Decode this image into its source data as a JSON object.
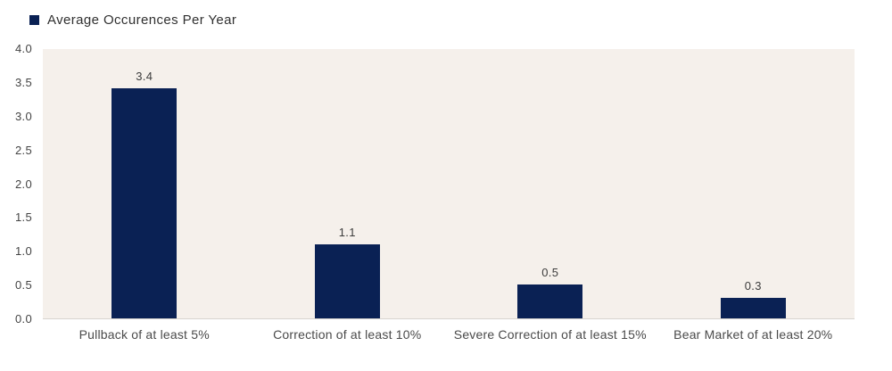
{
  "chart_data": {
    "type": "bar",
    "title": "",
    "legend": "Average Occurences Per Year",
    "legend_position": "top-left",
    "categories": [
      "Pullback of at least 5%",
      "Correction of at least 10%",
      "Severe Correction of at least 15%",
      "Bear Market of at least 20%"
    ],
    "values": [
      3.4,
      1.1,
      0.5,
      0.3
    ],
    "value_labels": [
      "3.4",
      "1.1",
      "0.5",
      "0.3"
    ],
    "ytick_labels": [
      "0.0",
      "0.5",
      "1.0",
      "1.5",
      "2.0",
      "2.5",
      "3.0",
      "3.5",
      "4.0"
    ],
    "yticks": [
      0.0,
      0.5,
      1.0,
      1.5,
      2.0,
      2.5,
      3.0,
      3.5,
      4.0
    ],
    "ylim": [
      0,
      4.0
    ],
    "xlabel": "",
    "ylabel": "",
    "grid": false,
    "colors": {
      "bar": "#0a2154",
      "plot_background": "#f5f0eb",
      "axis_line": "#d8d4cf",
      "tick_text": "#444444",
      "category_text": "#4a4a4a",
      "value_text": "#3c3c3c",
      "legend_text": "#303030"
    }
  }
}
